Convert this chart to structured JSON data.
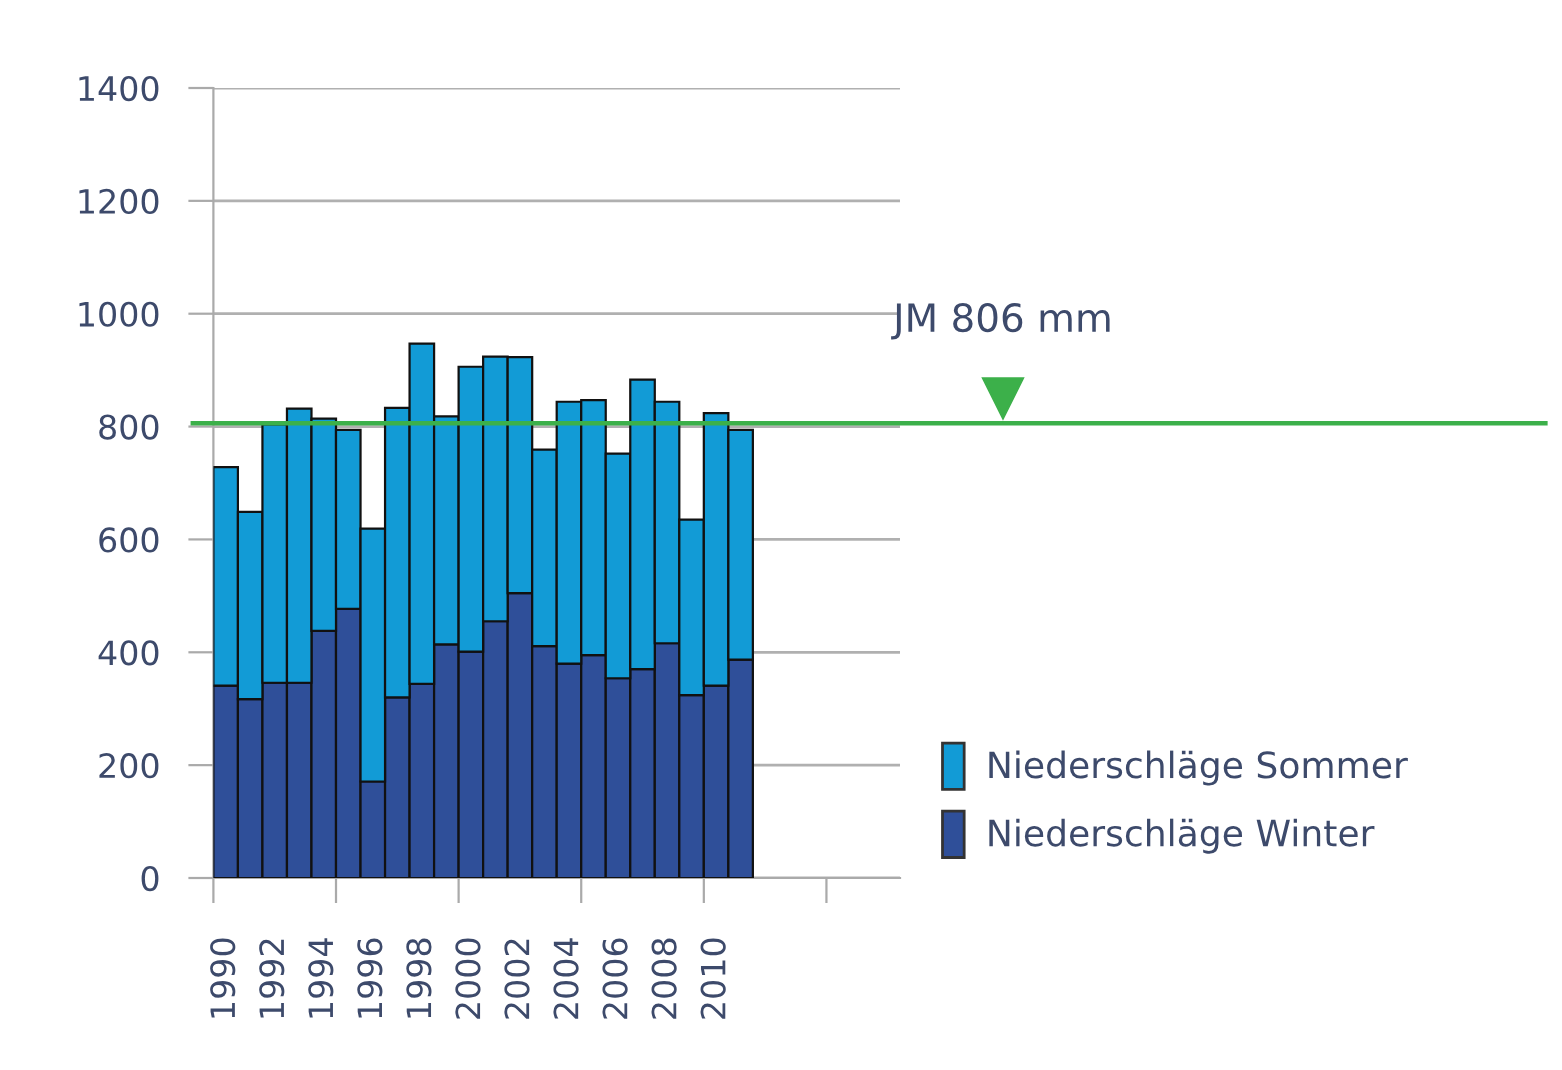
{
  "chart_data": {
    "type": "bar",
    "stacked": true,
    "x": [
      1990,
      1991,
      1992,
      1993,
      1994,
      1995,
      1996,
      1997,
      1998,
      1999,
      2000,
      2001,
      2002,
      2003,
      2004,
      2005,
      2006,
      2007,
      2008,
      2009,
      2010,
      2011
    ],
    "series": [
      {
        "name": "Niederschläge Winter",
        "color": "#2f4f99",
        "values": [
          341,
          317,
          346,
          346,
          438,
          477,
          171,
          320,
          344,
          414,
          401,
          455,
          505,
          411,
          380,
          395,
          354,
          370,
          416,
          324,
          341,
          387
        ]
      },
      {
        "name": "Niederschläge Sommer",
        "color": "#129bd6",
        "values": [
          387,
          332,
          458,
          486,
          376,
          317,
          448,
          513,
          603,
          404,
          505,
          469,
          418,
          348,
          464,
          452,
          398,
          513,
          428,
          311,
          483,
          407
        ]
      }
    ],
    "xlim": [
      1989.5,
      2017.5
    ],
    "xticks": [
      {
        "value": 1989.5,
        "label": null
      },
      {
        "value": 1990,
        "label": "1990"
      },
      {
        "value": 1992,
        "label": "1992"
      },
      {
        "value": 1994,
        "label": "1994"
      },
      {
        "value": 1994.5,
        "label": null
      },
      {
        "value": 1996,
        "label": "1996"
      },
      {
        "value": 1998,
        "label": "1998"
      },
      {
        "value": 1999.5,
        "label": null
      },
      {
        "value": 2000,
        "label": "2000"
      },
      {
        "value": 2002,
        "label": "2002"
      },
      {
        "value": 2004,
        "label": "2004"
      },
      {
        "value": 2004.5,
        "label": null
      },
      {
        "value": 2006,
        "label": "2006"
      },
      {
        "value": 2008,
        "label": "2008"
      },
      {
        "value": 2009.5,
        "label": null
      },
      {
        "value": 2010,
        "label": "2010"
      },
      {
        "value": 2014.5,
        "label": null
      }
    ],
    "ylim": [
      0,
      1400
    ],
    "yticks": [
      0,
      200,
      400,
      600,
      800,
      1000,
      1200,
      1400
    ],
    "grid": "y",
    "legend": "right",
    "ref_lines": [
      {
        "axis": "y",
        "value": 806,
        "label": "JM 806 mm",
        "color": "#3cb04a"
      }
    ]
  }
}
